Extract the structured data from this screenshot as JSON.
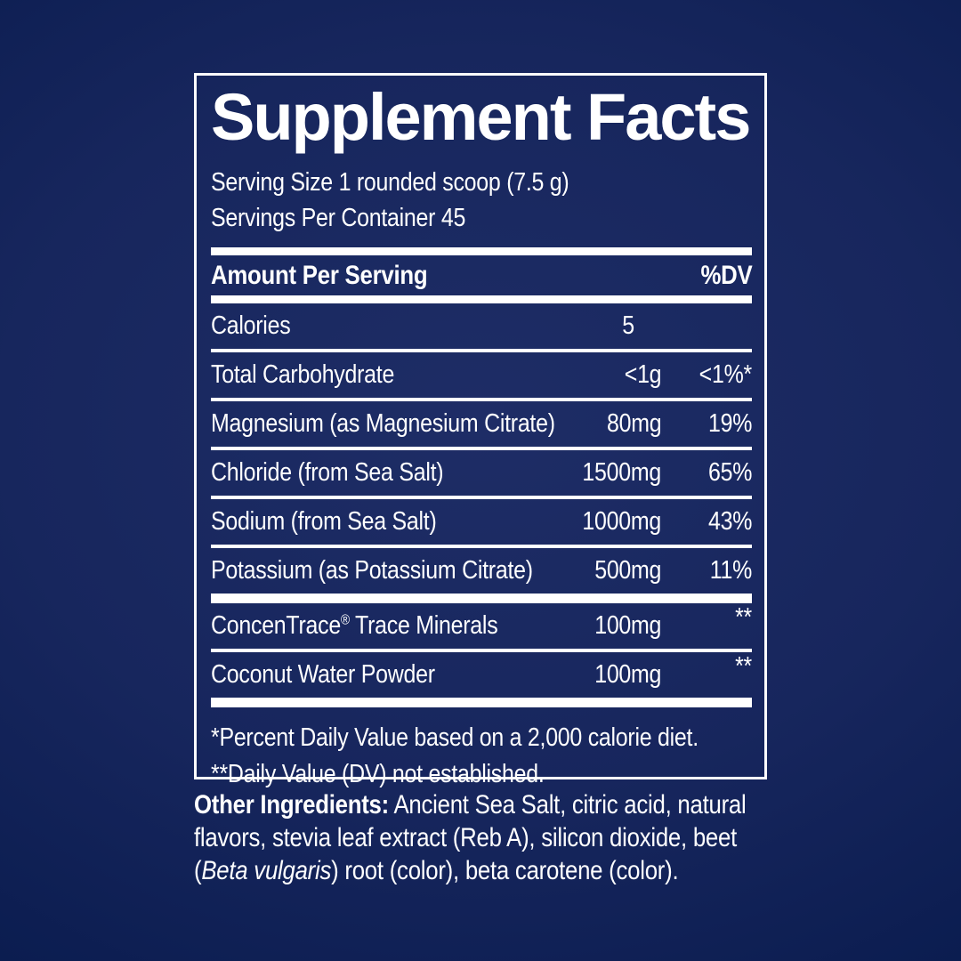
{
  "colors": {
    "background_navy": "#17265d",
    "background_navy_dark": "#0a1c4f",
    "background_navy_light": "#1e2d66",
    "text_and_rules": "#ffffff"
  },
  "panel": {
    "title": "Supplement Facts",
    "serving_size": "Serving Size 1 rounded scoop (7.5 g)",
    "servings_per_container": "Servings Per Container 45",
    "header": {
      "amount_per_serving": "Amount Per Serving",
      "dv": "%DV"
    },
    "table": {
      "rows": [
        {
          "label": "Calories",
          "amount": "5",
          "dv": ""
        },
        {
          "label": "Total Carbohydrate",
          "amount": "<1g",
          "dv": "<1%*"
        },
        {
          "label": "Magnesium (as Magnesium Citrate)",
          "amount": "80mg",
          "dv": "19%"
        },
        {
          "label": "Chloride (from Sea Salt)",
          "amount": "1500mg",
          "dv": "65%"
        },
        {
          "label": "Sodium (from Sea Salt)",
          "amount": "1000mg",
          "dv": "43%"
        },
        {
          "label": "Potassium (as Potassium Citrate)",
          "amount": "500mg",
          "dv": "11%"
        }
      ],
      "rows2": [
        {
          "label_main": "ConcenTrace",
          "label_trademark": "®",
          "label_rest": " Trace Minerals",
          "amount": "100mg",
          "dv": "**"
        },
        {
          "label": "Coconut Water Powder",
          "amount": "100mg",
          "dv": "**"
        }
      ]
    },
    "footnotes": [
      "*Percent Daily Value based on a 2,000 calorie diet.",
      "**Daily Value (DV) not established."
    ]
  },
  "other_ingredients": {
    "label": "Other Ingredients:",
    "line1_rest": " Ancient Sea Salt, citric acid, natural",
    "line2": "flavors, stevia leaf extract (Reb A), silicon dioxide, beet",
    "line3_pre": "(",
    "line3_italic": "Beta vulgaris",
    "line3_post": ") root (color), beta carotene (color)."
  }
}
